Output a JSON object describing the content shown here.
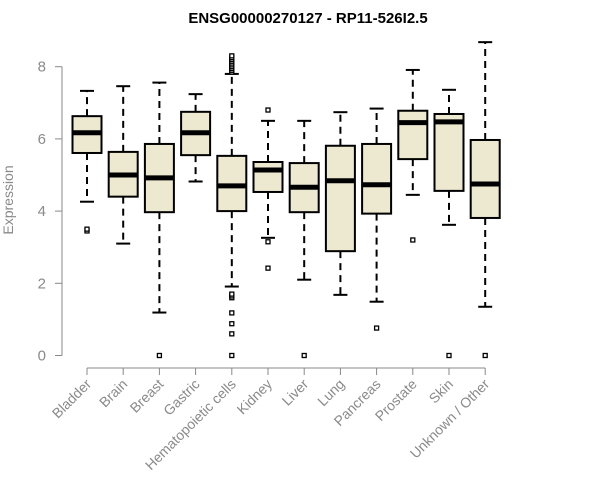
{
  "chart_data": {
    "type": "boxplot",
    "title": "ENSG00000270127 - RP11-526I2.5",
    "xlabel": "",
    "ylabel": "Expression",
    "ylim": [
      0,
      8.7
    ],
    "yticks": [
      0,
      2,
      4,
      6,
      8
    ],
    "grid": false,
    "box_color": "#ede8d0",
    "categories": [
      "Bladder",
      "Brain",
      "Breast",
      "Gastric",
      "Hematopoietic cells",
      "Kidney",
      "Liver",
      "Lung",
      "Pancreas",
      "Prostate",
      "Skin",
      "Unknown / Other"
    ],
    "boxes": [
      {
        "whisker_low": 4.26,
        "q1": 5.61,
        "median": 6.17,
        "q3": 6.63,
        "whisker_high": 7.33,
        "outliers": [
          3.45,
          3.5
        ]
      },
      {
        "whisker_low": 3.1,
        "q1": 4.4,
        "median": 5.0,
        "q3": 5.64,
        "whisker_high": 7.46,
        "outliers": []
      },
      {
        "whisker_low": 1.19,
        "q1": 3.97,
        "median": 4.92,
        "q3": 5.86,
        "whisker_high": 7.56,
        "outliers": [
          0
        ]
      },
      {
        "whisker_low": 4.82,
        "q1": 5.55,
        "median": 6.17,
        "q3": 6.75,
        "whisker_high": 7.24,
        "outliers": []
      },
      {
        "whisker_low": 1.91,
        "q1": 4.0,
        "median": 4.7,
        "q3": 5.53,
        "whisker_high": 7.8,
        "outliers": [
          7.85,
          7.9,
          7.95,
          8.0,
          8.05,
          8.1,
          8.15,
          8.2,
          8.25,
          8.3,
          1.6,
          1.65,
          1.7,
          1.18,
          0.88,
          0.6,
          0
        ]
      },
      {
        "whisker_low": 3.26,
        "q1": 4.53,
        "median": 5.14,
        "q3": 5.36,
        "whisker_high": 6.5,
        "outliers": [
          6.8,
          3.15,
          2.42
        ]
      },
      {
        "whisker_low": 2.1,
        "q1": 3.97,
        "median": 4.66,
        "q3": 5.33,
        "whisker_high": 6.5,
        "outliers": [
          0
        ]
      },
      {
        "whisker_low": 1.68,
        "q1": 2.89,
        "median": 4.84,
        "q3": 5.81,
        "whisker_high": 6.74,
        "outliers": []
      },
      {
        "whisker_low": 1.49,
        "q1": 3.93,
        "median": 4.73,
        "q3": 5.86,
        "whisker_high": 6.84,
        "outliers": [
          0.76
        ]
      },
      {
        "whisker_low": 4.45,
        "q1": 5.44,
        "median": 6.45,
        "q3": 6.78,
        "whisker_high": 7.91,
        "outliers": [
          3.2
        ]
      },
      {
        "whisker_low": 3.62,
        "q1": 4.56,
        "median": 6.47,
        "q3": 6.69,
        "whisker_high": 7.36,
        "outliers": [
          0
        ]
      },
      {
        "whisker_low": 1.35,
        "q1": 3.81,
        "median": 4.75,
        "q3": 5.97,
        "whisker_high": 8.68,
        "outliers": [
          0
        ]
      }
    ]
  }
}
